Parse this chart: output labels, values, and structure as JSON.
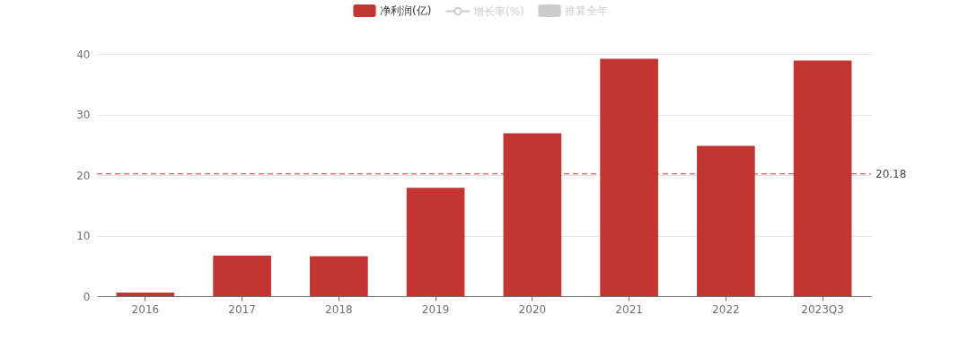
{
  "chart_data": {
    "type": "bar",
    "categories": [
      "2016",
      "2017",
      "2018",
      "2019",
      "2020",
      "2021",
      "2022",
      "2023Q3"
    ],
    "series": [
      {
        "name": "净利润(亿)",
        "color": "#c23531",
        "values": [
          0.6,
          6.7,
          6.6,
          17.9,
          26.9,
          39.2,
          24.8,
          38.9
        ]
      },
      {
        "name": "增长率(%)",
        "type": "line",
        "marker": "circle",
        "color": "#cccccc",
        "values": [
          null,
          null,
          null,
          null,
          null,
          null,
          null,
          null
        ]
      },
      {
        "name": "推算全年",
        "color": "#cccccc",
        "values": [
          null,
          null,
          null,
          null,
          null,
          null,
          null,
          null
        ]
      }
    ],
    "ylim": [
      0,
      40
    ],
    "yticks": [
      0,
      10,
      20,
      30,
      40
    ],
    "grid": "y",
    "legend": "top",
    "ref_lines": [
      {
        "axis": "y",
        "value": 20.18,
        "label": "20.18",
        "color": "#c23531",
        "line_style": "dashed"
      }
    ]
  }
}
